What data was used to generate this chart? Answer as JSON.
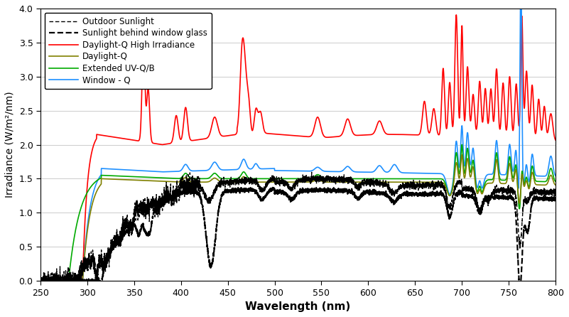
{
  "title": "",
  "xlabel": "Wavelength (nm)",
  "ylabel": "Irradiance (W/m²/nm)",
  "xlim": [
    250,
    800
  ],
  "ylim": [
    0.0,
    4.0
  ],
  "xticks": [
    250,
    300,
    350,
    400,
    450,
    500,
    550,
    600,
    650,
    700,
    750,
    800
  ],
  "yticks": [
    0.0,
    0.5,
    1.0,
    1.5,
    2.0,
    2.5,
    3.0,
    3.5,
    4.0
  ],
  "legend": [
    {
      "label": "Outdoor Sunlight",
      "color": "#000000",
      "linestyle": "dotted",
      "linewidth": 1.2
    },
    {
      "label": "Sunlight behind window glass",
      "color": "#000000",
      "linestyle": "dashed",
      "linewidth": 1.8
    },
    {
      "label": "Daylight-Q High Irradiance",
      "color": "#ff0000",
      "linestyle": "solid",
      "linewidth": 1.3
    },
    {
      "label": "Daylight-Q",
      "color": "#808000",
      "linestyle": "solid",
      "linewidth": 1.3
    },
    {
      "label": "Extended UV-Q/B",
      "color": "#00aa00",
      "linestyle": "solid",
      "linewidth": 1.3
    },
    {
      "label": "Window - Q",
      "color": "#1e90ff",
      "linestyle": "solid",
      "linewidth": 1.3
    }
  ],
  "figsize": [
    8.01,
    4.46
  ],
  "dpi": 100
}
